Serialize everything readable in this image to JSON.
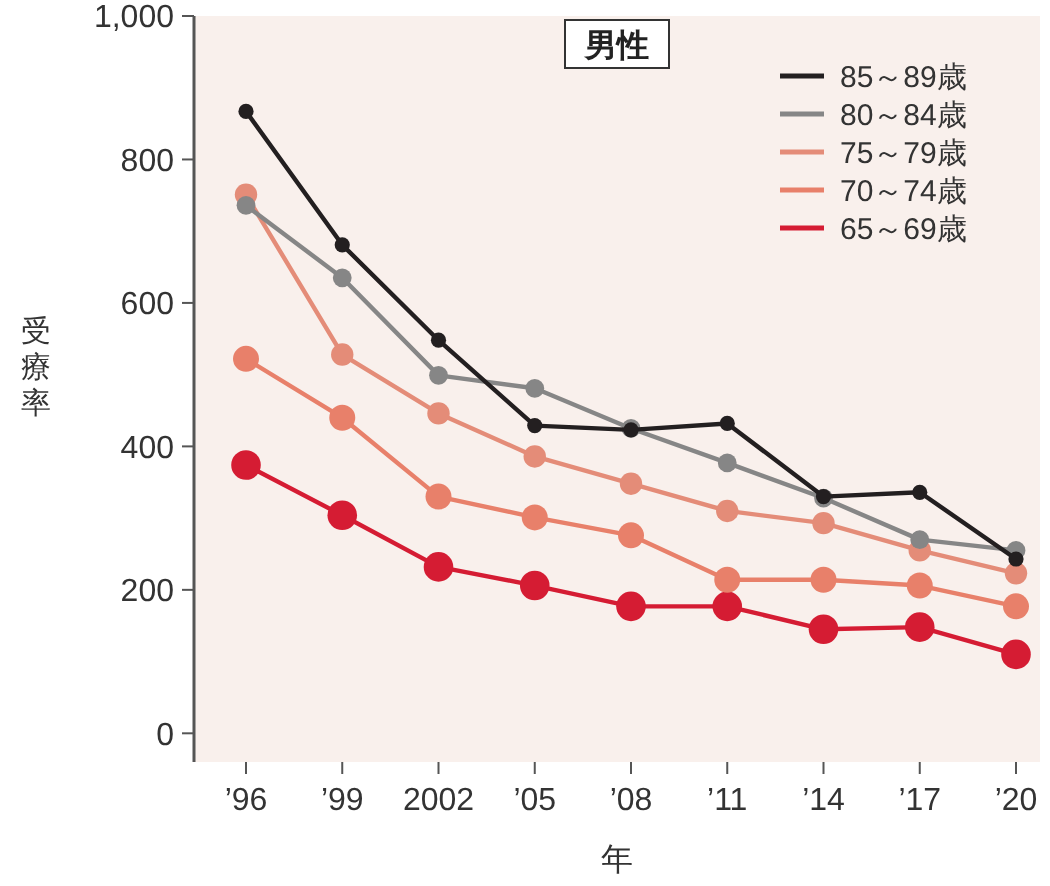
{
  "chart_data": {
    "type": "line",
    "title": "男性",
    "xlabel": "年",
    "ylabel": "受療率",
    "categories": [
      "’96",
      "’99",
      "2002",
      "’05",
      "’08",
      "’11",
      "’14",
      "’17",
      "’20"
    ],
    "series": [
      {
        "name": "85～89歳",
        "color": "#231f20",
        "values": [
          867,
          681,
          548,
          429,
          423,
          432,
          330,
          336,
          243
        ]
      },
      {
        "name": "80～84歳",
        "color": "#868686",
        "values": [
          736,
          635,
          499,
          481,
          425,
          377,
          328,
          270,
          255
        ]
      },
      {
        "name": "75～79歳",
        "color": "#e48c78",
        "values": [
          751,
          528,
          446,
          386,
          348,
          310,
          293,
          255,
          223
        ]
      },
      {
        "name": "70～74歳",
        "color": "#e8806a",
        "values": [
          522,
          440,
          330,
          301,
          276,
          214,
          214,
          206,
          177
        ]
      },
      {
        "name": "65～69歳",
        "color": "#d51c33",
        "values": [
          374,
          304,
          232,
          206,
          177,
          177,
          145,
          148,
          110
        ]
      }
    ],
    "ylim": [
      -40,
      1000
    ],
    "yticks": [
      0,
      200,
      400,
      600,
      800,
      {
        "value": 1000,
        "label": "1,000"
      }
    ],
    "grid": false,
    "legend": "top right",
    "marker": "circle",
    "line_style": "solid"
  }
}
